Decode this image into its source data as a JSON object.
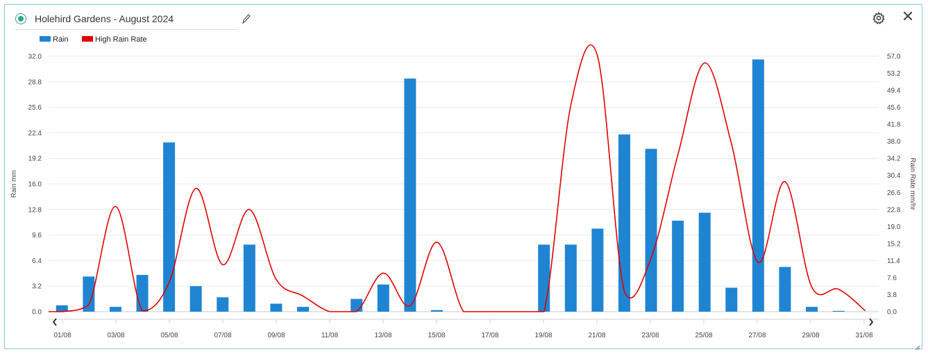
{
  "header": {
    "title": "Holehird Gardens - August 2024",
    "icons": {
      "edit": "pencil-icon",
      "settings": "gear-icon",
      "close": "close-icon"
    }
  },
  "legend": [
    {
      "name": "Rain",
      "color": "#1f85d3"
    },
    {
      "name": "High Rain Rate",
      "color": "#e00000"
    }
  ],
  "chart_data": {
    "type": "bar",
    "x_tick_labels": [
      "01/08",
      "03/08",
      "05/08",
      "07/08",
      "09/08",
      "11/08",
      "13/08",
      "15/08",
      "17/08",
      "19/08",
      "21/08",
      "23/08",
      "25/08",
      "27/08",
      "29/08",
      "31/08"
    ],
    "categories": [
      "01/08",
      "02/08",
      "03/08",
      "04/08",
      "05/08",
      "06/08",
      "07/08",
      "08/08",
      "09/08",
      "10/08",
      "11/08",
      "12/08",
      "13/08",
      "14/08",
      "15/08",
      "16/08",
      "17/08",
      "18/08",
      "19/08",
      "20/08",
      "21/08",
      "22/08",
      "23/08",
      "24/08",
      "25/08",
      "26/08",
      "27/08",
      "28/08",
      "29/08",
      "30/08",
      "31/08"
    ],
    "series": [
      {
        "name": "Rain",
        "axis": "left",
        "type": "bar",
        "color": "#1f85d3",
        "values": [
          0.8,
          4.4,
          0.6,
          4.6,
          21.2,
          3.2,
          1.8,
          8.4,
          1.0,
          0.6,
          0,
          1.6,
          3.4,
          29.2,
          0.2,
          0,
          0,
          0,
          8.4,
          8.4,
          10.4,
          22.2,
          20.4,
          11.4,
          12.4,
          3.0,
          31.6,
          5.6,
          0.6,
          0.1,
          0
        ]
      },
      {
        "name": "High Rain Rate",
        "axis": "right",
        "type": "line",
        "color": "#e00000",
        "values": [
          0,
          1.5,
          23.5,
          0.2,
          6.5,
          27.5,
          10.5,
          22.8,
          7.2,
          3.5,
          0,
          0,
          8.6,
          1.3,
          15.5,
          0,
          0,
          0,
          0,
          46,
          57,
          4.5,
          12,
          35,
          55.5,
          37.5,
          11,
          29,
          5.5,
          5,
          0.2
        ]
      }
    ],
    "ylabel": "Rain mm",
    "y2label": "Rain Rate mm/hr",
    "ylim": [
      0,
      32
    ],
    "y2lim": [
      0,
      57
    ],
    "yticks": [
      "0.0",
      "3.2",
      "6.4",
      "9.6",
      "12.8",
      "16.0",
      "19.2",
      "22.4",
      "25.6",
      "28.8",
      "32.0"
    ],
    "y2ticks": [
      "0.0",
      "3.8",
      "7.6",
      "11.4",
      "15.2",
      "19.0",
      "22.8",
      "26.6",
      "30.4",
      "34.2",
      "38.0",
      "41.8",
      "45.6",
      "49.4",
      "53.2",
      "57.0"
    ],
    "grid": true,
    "legend_position": "top-left"
  },
  "nav": {
    "prev": "chevron-left-icon",
    "next": "chevron-right-icon"
  }
}
